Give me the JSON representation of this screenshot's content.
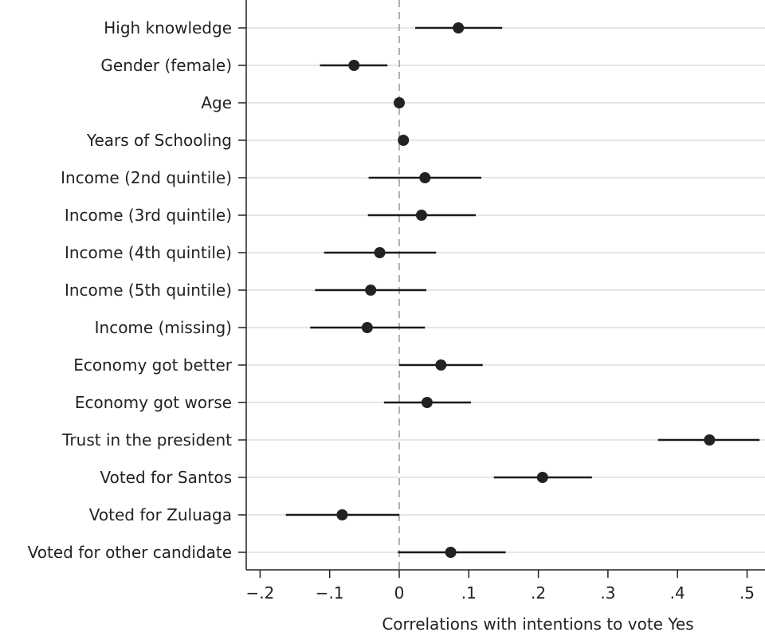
{
  "chart_data": {
    "type": "scatter",
    "subtype": "coefficient-plot",
    "title": "",
    "xlabel": "Correlations with intentions to vote Yes",
    "ylabel": "",
    "xlim": [
      -0.2,
      0.52
    ],
    "x_ticks": [
      -0.2,
      -0.1,
      0,
      0.1,
      0.2,
      0.3,
      0.4,
      0.5
    ],
    "x_tick_labels": [
      "−.2",
      "−.1",
      "0",
      ".1",
      ".2",
      ".3",
      ".4",
      ".5"
    ],
    "reference_line": 0,
    "grid": "horizontal",
    "categories": [
      "High knowledge",
      "Gender (female)",
      "Age",
      "Years of Schooling",
      "Income (2nd quintile)",
      "Income (3rd quintile)",
      "Income (4th quintile)",
      "Income (5th quintile)",
      "Income (missing)",
      "Economy got better",
      "Economy got worse",
      "Trust in the president",
      "Voted for Santos",
      "Voted for Zuluaga",
      "Voted for other candidate"
    ],
    "estimates": [
      0.085,
      -0.065,
      0.0,
      0.006,
      0.037,
      0.032,
      -0.028,
      -0.041,
      -0.046,
      0.06,
      0.04,
      0.446,
      0.206,
      -0.082,
      0.074
    ],
    "ci_low": [
      0.023,
      -0.114,
      -0.001,
      0.004,
      -0.044,
      -0.045,
      -0.108,
      -0.121,
      -0.128,
      0.0,
      -0.022,
      0.372,
      0.136,
      -0.163,
      -0.002
    ],
    "ci_high": [
      0.148,
      -0.017,
      0.001,
      0.009,
      0.118,
      0.11,
      0.053,
      0.039,
      0.037,
      0.12,
      0.103,
      0.518,
      0.277,
      0.0,
      0.153
    ]
  }
}
